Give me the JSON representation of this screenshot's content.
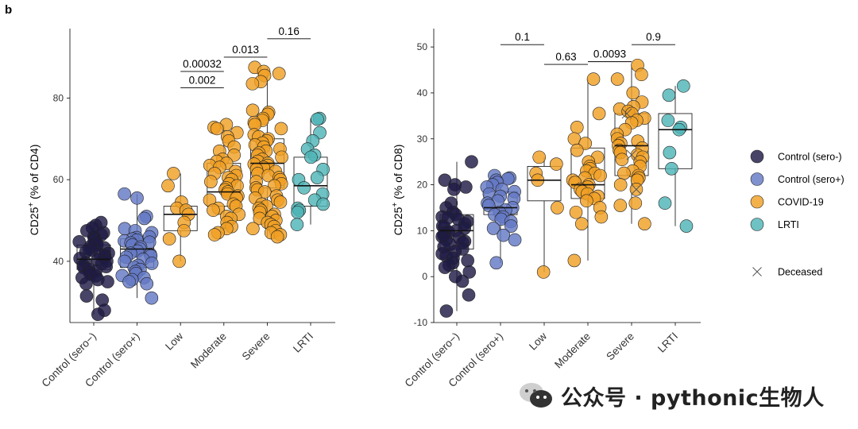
{
  "panel_label": "b",
  "watermark": {
    "text": "公众号 · pythonic生物人",
    "icon": "wechat-icon"
  },
  "colors": {
    "sero_neg": "#1e1b45",
    "sero_pos": "#6479c4",
    "covid": "#f0a024",
    "lrti": "#4fb5b7"
  },
  "chart_data": [
    {
      "type": "box-scatter",
      "ylabel_main": "CD25",
      "ylabel_sup": "+",
      "ylabel_rest": " (% of CD4)",
      "ylim": [
        25,
        97
      ],
      "yticks": [
        40,
        60,
        80
      ],
      "categories": [
        "Control (sero−)",
        "Control (sero+)",
        "Low",
        "Moderate",
        "Severe",
        "LRTI"
      ],
      "boxes": [
        {
          "q1": 38,
          "median": 40.5,
          "q3": 44,
          "whisker_low": 27,
          "whisker_high": 49.5
        },
        {
          "q1": 38.5,
          "median": 43,
          "q3": 45.5,
          "whisker_low": 31,
          "whisker_high": 56.5
        },
        {
          "q1": 47.5,
          "median": 51.5,
          "q3": 53.5,
          "whisker_low": 40,
          "whisker_high": 61.5
        },
        {
          "q1": 53.5,
          "median": 57,
          "q3": 64,
          "whisker_low": 46.5,
          "whisker_high": 73.5
        },
        {
          "q1": 58,
          "median": 64,
          "q3": 70,
          "whisker_low": 46,
          "whisker_high": 87.5
        },
        {
          "q1": 53.5,
          "median": 58.5,
          "q3": 65.5,
          "whisker_low": 49,
          "whisker_high": 75
        }
      ],
      "points": [
        [
          49.5,
          48.8,
          48.2,
          47.5,
          47,
          46.5,
          46,
          45.5,
          45.2,
          44.8,
          44.5,
          44,
          43.7,
          43.3,
          43,
          42.7,
          42.3,
          42,
          41.7,
          41.4,
          41,
          40.7,
          40.4,
          40,
          39.7,
          39.4,
          39,
          38.7,
          38.4,
          38,
          37.6,
          37.2,
          36.8,
          36.4,
          36,
          35.5,
          35,
          34.5,
          31.5,
          30.5,
          28,
          27
        ],
        [
          56.5,
          55.5,
          51,
          50.5,
          48,
          47.5,
          47,
          46,
          45.8,
          45.5,
          45.2,
          45,
          44.7,
          44.5,
          44,
          43.5,
          43,
          42.5,
          42,
          41.7,
          41.3,
          41,
          40.5,
          40,
          39.5,
          39,
          38.5,
          38,
          37.5,
          37,
          36.5,
          36,
          35.5,
          35,
          34.5,
          31
        ],
        [
          61.5,
          58.5,
          54.5,
          53,
          52.5,
          51.5,
          49.5,
          47.5,
          45.5,
          40
        ],
        [
          73.5,
          72.8,
          72.5,
          71.5,
          70.5,
          69.5,
          68,
          67,
          66,
          65,
          64.5,
          64,
          63.5,
          63,
          62,
          61.5,
          61,
          60.5,
          60,
          59.5,
          59,
          58.5,
          58,
          57.5,
          57,
          56.5,
          56,
          55.5,
          55,
          54,
          53.5,
          53,
          52.5,
          51.5,
          51,
          50.5,
          49.5,
          48.5,
          48,
          47,
          46.5
        ],
        [
          87.5,
          86.5,
          86,
          85.5,
          84,
          83.5,
          77,
          76.5,
          76,
          75,
          74.5,
          74,
          73.5,
          72.5,
          71,
          70.5,
          70,
          69.5,
          69,
          68.5,
          68,
          67.5,
          67,
          66.5,
          66,
          65.5,
          65,
          64.5,
          64,
          63.8,
          63.5,
          63,
          62.5,
          62,
          61.5,
          61,
          60.5,
          60,
          59.5,
          59,
          58.5,
          58,
          57.5,
          57,
          56,
          55.5,
          55,
          54.5,
          54,
          53.5,
          53,
          52.5,
          52,
          51.5,
          51,
          50.5,
          50,
          49.5,
          49,
          48.5,
          48,
          47.5,
          47,
          46.5,
          46
        ],
        [
          75,
          74.8,
          71.5,
          69.5,
          67.5,
          66,
          65.5,
          62.5,
          60.5,
          60,
          58,
          56.5,
          55,
          54,
          53,
          52.5,
          52,
          49
        ]
      ],
      "deceased": [],
      "comparisons": [
        {
          "label": "0.16",
          "from": 4,
          "to": 5,
          "y": 94.5
        },
        {
          "label": "0.013",
          "from": 3,
          "to": 4,
          "y": 90
        },
        {
          "label": "0.00032",
          "from": 2,
          "to": 3,
          "y": 86.5
        },
        {
          "label": "0.002",
          "from": 2,
          "to": 3,
          "y": 82.5
        }
      ]
    },
    {
      "type": "box-scatter",
      "ylabel_main": "CD25",
      "ylabel_sup": "+",
      "ylabel_rest": " (% of CD8)",
      "ylim": [
        -10,
        54
      ],
      "yticks": [
        -10,
        0,
        10,
        20,
        30,
        40,
        50
      ],
      "categories": [
        "Control (sero−)",
        "Control (sero+)",
        "Low",
        "Moderate",
        "Severe",
        "LRTI"
      ],
      "boxes": [
        {
          "q1": 6,
          "median": 10,
          "q3": 13.5,
          "whisker_low": -7.5,
          "whisker_high": 25
        },
        {
          "q1": 13.5,
          "median": 15,
          "q3": 18.5,
          "whisker_low": 3,
          "whisker_high": 22
        },
        {
          "q1": 16.5,
          "median": 21,
          "q3": 24,
          "whisker_low": 1,
          "whisker_high": 26
        },
        {
          "q1": 17,
          "median": 20,
          "q3": 28,
          "whisker_low": 3.5,
          "whisker_high": 43
        },
        {
          "q1": 22,
          "median": 28.5,
          "q3": 35.5,
          "whisker_low": 11.5,
          "whisker_high": 46
        },
        {
          "q1": 23.5,
          "median": 32,
          "q3": 35.5,
          "whisker_low": 11,
          "whisker_high": 41.5
        }
      ],
      "points": [
        [
          25,
          21,
          20,
          19.5,
          19,
          16,
          15,
          14,
          13.5,
          13,
          12.8,
          12.5,
          12,
          11.5,
          11,
          10.8,
          10.5,
          10,
          9.7,
          9.4,
          9,
          8.7,
          8.4,
          8,
          7.7,
          7.4,
          7,
          6.5,
          6,
          5.5,
          5,
          4.5,
          4,
          3.5,
          3,
          2.5,
          2,
          1,
          0,
          -1,
          -4,
          -7.5
        ],
        [
          22,
          21.5,
          21.3,
          21,
          20.5,
          20,
          19.5,
          19,
          18.5,
          18,
          17.5,
          17,
          16.5,
          16,
          15.5,
          15,
          14.5,
          14,
          13.5,
          13,
          12.5,
          12,
          11,
          10.5,
          9,
          8,
          3
        ],
        [
          26,
          24.5,
          22.5,
          21,
          15,
          1
        ],
        [
          43,
          35.5,
          32.5,
          30,
          29,
          27.5,
          26,
          25,
          24,
          23.5,
          23,
          22.5,
          22,
          21.5,
          21,
          20.5,
          20,
          19.5,
          19,
          18.5,
          18,
          17.5,
          17,
          16.5,
          15,
          14,
          13,
          11.5,
          3.5
        ],
        [
          46,
          44,
          43,
          40,
          38,
          37,
          36.5,
          36,
          35.5,
          34.5,
          34,
          33.5,
          32,
          31,
          30,
          29.5,
          29,
          28.5,
          28,
          27.5,
          27,
          26.5,
          26,
          25.5,
          25,
          24,
          23,
          22.5,
          22,
          21.5,
          21,
          20,
          19,
          16,
          15.5,
          11.5
        ],
        [
          41.5,
          39.5,
          34,
          32.5,
          32,
          27,
          23.5,
          16,
          11
        ]
      ],
      "deceased": [
        [
          4,
          35.5
        ],
        [
          4,
          26.5
        ],
        [
          4,
          19
        ]
      ],
      "comparisons": [
        {
          "label": "0.1",
          "from": 1,
          "to": 2,
          "y": 50.5
        },
        {
          "label": "0.9",
          "from": 4,
          "to": 5,
          "y": 50.5
        },
        {
          "label": "0.0093",
          "from": 3,
          "to": 4,
          "y": 46.8
        },
        {
          "label": "0.63",
          "from": 2,
          "to": 3,
          "y": 46.2
        }
      ]
    }
  ],
  "legend": {
    "items": [
      {
        "label": "Control (sero-)",
        "color": "#1e1b45"
      },
      {
        "label": "Control (sero+)",
        "color": "#6479c4"
      },
      {
        "label": "COVID-19",
        "color": "#f0a024"
      },
      {
        "label": "LRTI",
        "color": "#4fb5b7"
      }
    ],
    "deceased_label": "Deceased"
  }
}
